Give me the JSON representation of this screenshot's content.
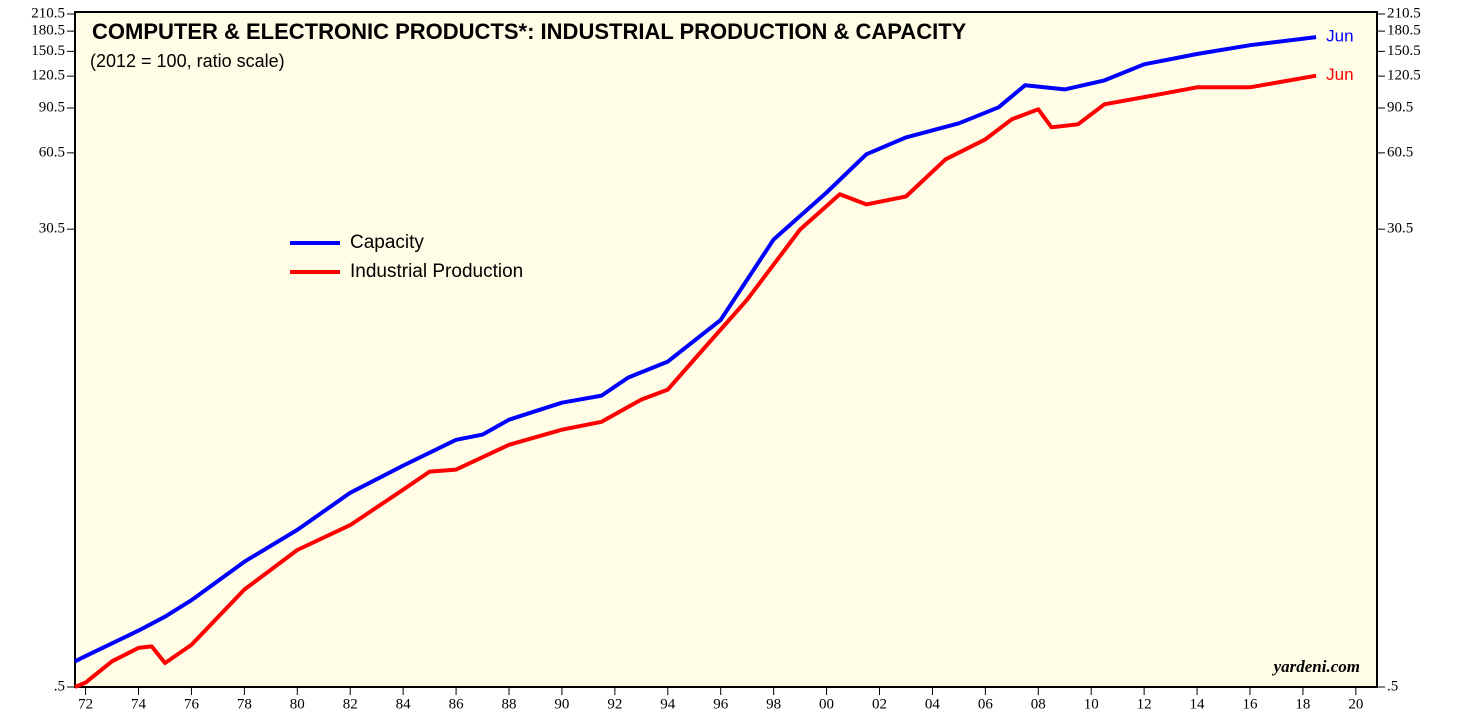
{
  "chart_data": {
    "type": "line",
    "title": "COMPUTER & ELECTRONIC PRODUCTS*: INDUSTRIAL PRODUCTION & CAPACITY",
    "subtitle": "(2012 = 100, ratio scale)",
    "watermark": "yardeni.com",
    "log_scale": true,
    "legend": "upper left",
    "xlim": [
      1971.6,
      2020.8
    ],
    "xticks": [
      {
        "value": 1972,
        "label": "72"
      },
      {
        "value": 1974,
        "label": "74"
      },
      {
        "value": 1976,
        "label": "76"
      },
      {
        "value": 1978,
        "label": "78"
      },
      {
        "value": 1980,
        "label": "80"
      },
      {
        "value": 1982,
        "label": "82"
      },
      {
        "value": 1984,
        "label": "84"
      },
      {
        "value": 1986,
        "label": "86"
      },
      {
        "value": 1988,
        "label": "88"
      },
      {
        "value": 1990,
        "label": "90"
      },
      {
        "value": 1992,
        "label": "92"
      },
      {
        "value": 1994,
        "label": "94"
      },
      {
        "value": 1996,
        "label": "96"
      },
      {
        "value": 1998,
        "label": "98"
      },
      {
        "value": 2000,
        "label": "00"
      },
      {
        "value": 2002,
        "label": "02"
      },
      {
        "value": 2004,
        "label": "04"
      },
      {
        "value": 2006,
        "label": "06"
      },
      {
        "value": 2008,
        "label": "08"
      },
      {
        "value": 2010,
        "label": "10"
      },
      {
        "value": 2012,
        "label": "12"
      },
      {
        "value": 2014,
        "label": "14"
      },
      {
        "value": 2016,
        "label": "16"
      },
      {
        "value": 2018,
        "label": "18"
      },
      {
        "value": 2020,
        "label": "20"
      }
    ],
    "ylim": [
      0.5,
      210.5
    ],
    "yticks": [
      {
        "value": 0.5,
        "label": ".5"
      },
      30.5,
      60.5,
      90.5,
      120.5,
      150.5,
      180.5,
      210.5
    ],
    "series": [
      {
        "name": "Capacity",
        "color": "#0000ff",
        "end_label": "Jun",
        "x": [
          1971.6,
          1972,
          1974,
          1975,
          1976,
          1978,
          1980,
          1982,
          1984,
          1986,
          1987,
          1988,
          1990,
          1991.5,
          1992.5,
          1994,
          1996,
          1998,
          2000,
          2001.5,
          2003,
          2005,
          2006.5,
          2007.5,
          2009,
          2010.5,
          2012,
          2014,
          2016,
          2018.5
        ],
        "values": [
          0.63,
          0.66,
          0.83,
          0.94,
          1.09,
          1.54,
          2.05,
          2.86,
          3.65,
          4.6,
          4.82,
          5.51,
          6.42,
          6.84,
          8.04,
          9.29,
          13.5,
          27.8,
          42.4,
          59.7,
          69.5,
          78.9,
          91.1,
          111,
          107,
          116,
          134,
          147,
          159,
          171
        ]
      },
      {
        "name": "Industrial Production",
        "color": "#ff0000",
        "end_label": "Jun",
        "x": [
          1971.6,
          1972,
          1973,
          1974,
          1974.5,
          1975,
          1976,
          1978,
          1980,
          1982,
          1984,
          1985,
          1986,
          1988,
          1990,
          1991.5,
          1993,
          1994,
          1995,
          1997,
          1999,
          2000.5,
          2001.5,
          2003,
          2004.5,
          2006,
          2007,
          2008,
          2008.5,
          2009.5,
          2010.5,
          2012.5,
          2014,
          2016,
          2018.5
        ],
        "values": [
          0.5,
          0.52,
          0.63,
          0.71,
          0.72,
          0.62,
          0.73,
          1.2,
          1.71,
          2.14,
          2.94,
          3.46,
          3.52,
          4.4,
          5.04,
          5.41,
          6.6,
          7.22,
          9.46,
          16.2,
          30.4,
          41.7,
          38.1,
          40.9,
          57.1,
          68.3,
          81.8,
          89.5,
          76.1,
          78.2,
          93.6,
          102,
          109,
          109,
          121
        ]
      }
    ]
  }
}
